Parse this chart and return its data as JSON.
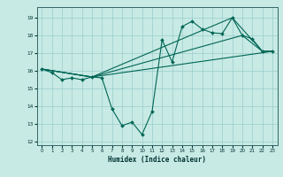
{
  "xlabel": "Humidex (Indice chaleur)",
  "ylabel": "",
  "xlim": [
    -0.5,
    23.5
  ],
  "ylim": [
    11.8,
    19.6
  ],
  "yticks": [
    12,
    13,
    14,
    15,
    16,
    17,
    18,
    19
  ],
  "xticks": [
    0,
    1,
    2,
    3,
    4,
    5,
    6,
    7,
    8,
    9,
    10,
    11,
    12,
    13,
    14,
    15,
    16,
    17,
    18,
    19,
    20,
    21,
    22,
    23
  ],
  "background_color": "#c8eae4",
  "line_color": "#006655",
  "grid_color": "#99cccc",
  "lines": [
    {
      "x": [
        0,
        1,
        2,
        3,
        4,
        5,
        6,
        7,
        8,
        9,
        10,
        11,
        12,
        13,
        14,
        15,
        16,
        17,
        18,
        19,
        20,
        21,
        22,
        23
      ],
      "y": [
        16.1,
        15.9,
        15.5,
        15.6,
        15.5,
        15.65,
        15.6,
        13.85,
        12.9,
        13.1,
        12.4,
        13.7,
        17.75,
        16.5,
        18.5,
        18.8,
        18.35,
        18.15,
        18.1,
        19.0,
        18.0,
        17.8,
        17.1,
        17.1
      ]
    },
    {
      "x": [
        0,
        5,
        19,
        22,
        23
      ],
      "y": [
        16.1,
        15.65,
        19.0,
        17.1,
        17.1
      ]
    },
    {
      "x": [
        0,
        5,
        20,
        22,
        23
      ],
      "y": [
        16.1,
        15.65,
        18.0,
        17.1,
        17.1
      ]
    },
    {
      "x": [
        0,
        5,
        23
      ],
      "y": [
        16.1,
        15.65,
        17.1
      ]
    }
  ]
}
